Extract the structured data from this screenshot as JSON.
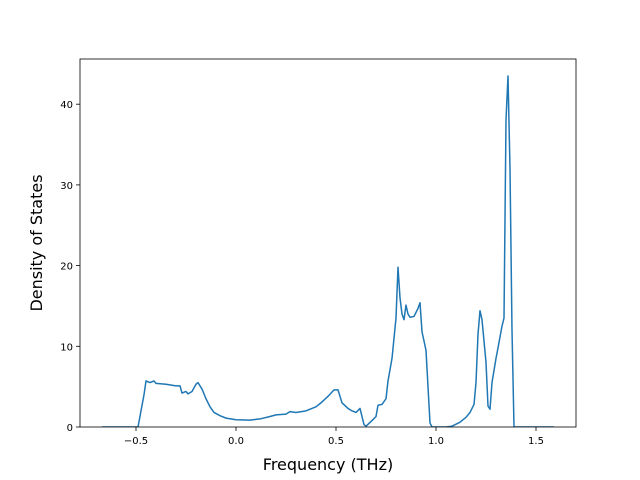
{
  "chart_data": {
    "type": "line",
    "xlabel": "Frequency (THz)",
    "ylabel": "Density of States",
    "x": [
      -0.67,
      -0.49,
      -0.46,
      -0.45,
      -0.43,
      -0.41,
      -0.4,
      -0.35,
      -0.3,
      -0.28,
      -0.27,
      -0.25,
      -0.24,
      -0.22,
      -0.2,
      -0.19,
      -0.17,
      -0.15,
      -0.13,
      -0.11,
      -0.08,
      -0.05,
      0.0,
      0.07,
      0.12,
      0.17,
      0.2,
      0.25,
      0.27,
      0.3,
      0.35,
      0.4,
      0.43,
      0.46,
      0.49,
      0.51,
      0.53,
      0.56,
      0.58,
      0.6,
      0.62,
      0.64,
      0.65,
      0.68,
      0.7,
      0.71,
      0.73,
      0.75,
      0.76,
      0.78,
      0.8,
      0.81,
      0.82,
      0.83,
      0.84,
      0.85,
      0.86,
      0.87,
      0.89,
      0.91,
      0.92,
      0.93,
      0.95,
      0.97,
      0.98,
      1.05,
      1.08,
      1.12,
      1.15,
      1.17,
      1.19,
      1.2,
      1.21,
      1.22,
      1.23,
      1.25,
      1.26,
      1.27,
      1.28,
      1.3,
      1.31,
      1.33,
      1.34,
      1.35,
      1.36,
      1.37,
      1.38,
      1.39,
      1.59
    ],
    "series": [
      {
        "color": "#1f77b4",
        "values": [
          0,
          0,
          4.0,
          5.7,
          5.5,
          5.7,
          5.4,
          5.3,
          5.1,
          5.1,
          4.2,
          4.4,
          4.1,
          4.4,
          5.3,
          5.5,
          4.7,
          3.5,
          2.5,
          1.8,
          1.4,
          1.1,
          0.9,
          0.85,
          1.0,
          1.3,
          1.5,
          1.6,
          1.9,
          1.8,
          2.0,
          2.5,
          3.1,
          3.8,
          4.6,
          4.6,
          3.0,
          2.3,
          2.0,
          1.8,
          2.3,
          0.3,
          0.1,
          0.8,
          1.3,
          2.7,
          2.8,
          3.5,
          5.7,
          8.5,
          13.5,
          19.8,
          16,
          14,
          13.3,
          15.1,
          14.0,
          13.6,
          13.7,
          14.7,
          15.4,
          11.8,
          9.5,
          0.5,
          0,
          0,
          0.1,
          0.6,
          1.2,
          1.8,
          2.8,
          5.5,
          11.5,
          14.4,
          13.3,
          8,
          2.6,
          2.2,
          5.5,
          8.5,
          9.8,
          12.5,
          13.5,
          38,
          43.5,
          32,
          12,
          0,
          0
        ]
      }
    ],
    "xlim": [
      -0.78,
      1.7
    ],
    "ylim": [
      0,
      45.6
    ],
    "xticks": [
      {
        "value": -0.5,
        "label": "−0.5"
      },
      {
        "value": 0,
        "label": "0.0"
      },
      {
        "value": 0.5,
        "label": "0.5"
      },
      {
        "value": 1,
        "label": "1.0"
      },
      {
        "value": 1.5,
        "label": "1.5"
      }
    ],
    "yticks": [
      0,
      10,
      20,
      30,
      40
    ],
    "grid": false
  }
}
